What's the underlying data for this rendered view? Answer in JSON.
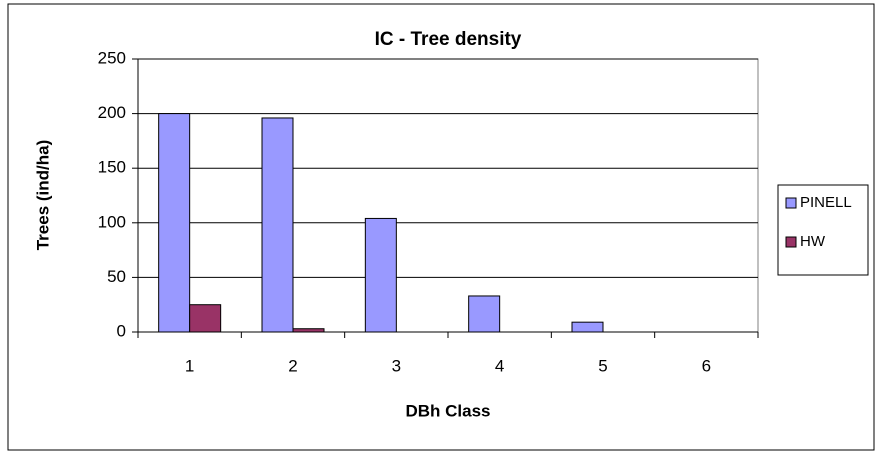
{
  "chart_data": {
    "type": "bar",
    "title": "IC - Tree density",
    "x_label": "DBh Class",
    "y_label": "Trees (ind/ha)",
    "categories": [
      "1",
      "2",
      "3",
      "4",
      "5",
      "6"
    ],
    "series": [
      {
        "name": "PINELL",
        "color": "#9999ff",
        "values": [
          200,
          196,
          104,
          33,
          9,
          0
        ]
      },
      {
        "name": "HW",
        "color": "#993366",
        "values": [
          25,
          3,
          0,
          0,
          0,
          0
        ]
      }
    ],
    "ylim": [
      0,
      250
    ],
    "yticks": [
      0,
      50,
      100,
      150,
      200,
      250
    ],
    "grid": true,
    "legend": "right"
  }
}
